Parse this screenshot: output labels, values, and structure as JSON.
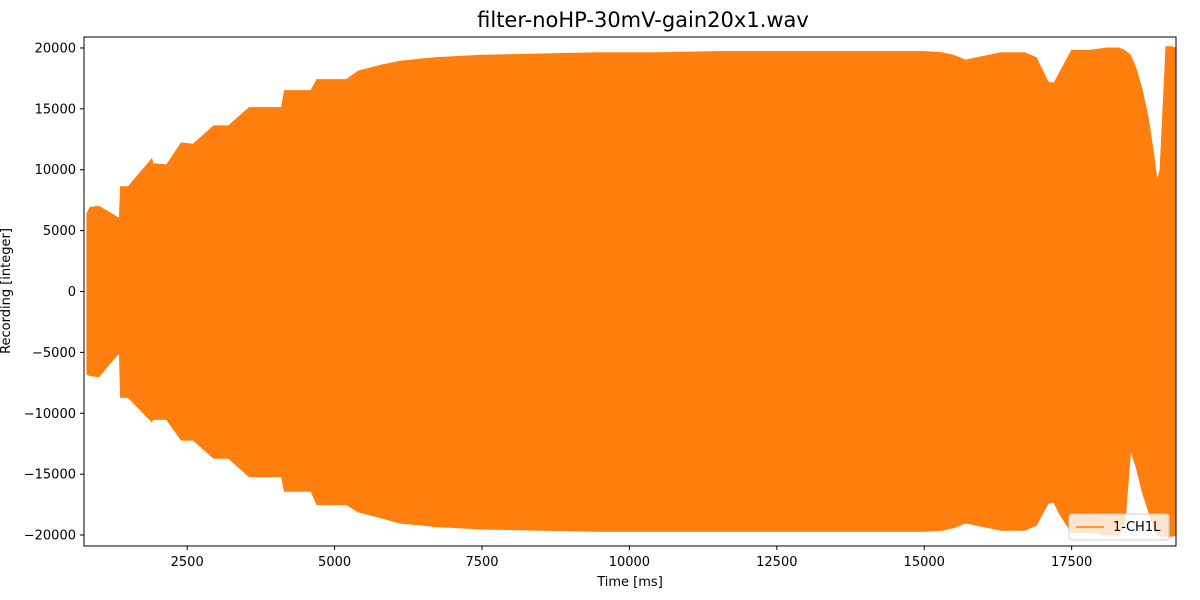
{
  "chart_data": {
    "type": "line",
    "title": "filter-noHP-30mV-gain20x1.wav",
    "xlabel": "Time [ms]",
    "ylabel": "Recording [integer]",
    "xlim": [
      750,
      19270
    ],
    "ylim": [
      -20900,
      20900
    ],
    "xticks": [
      2500,
      5000,
      7500,
      10000,
      12500,
      15000,
      17500
    ],
    "xtick_labels": [
      "2500",
      "5000",
      "7500",
      "10000",
      "12500",
      "15000",
      "17500"
    ],
    "yticks": [
      -20000,
      -15000,
      -10000,
      -5000,
      0,
      5000,
      10000,
      15000,
      20000
    ],
    "ytick_labels": [
      "−20000",
      "−15000",
      "−10000",
      "−5000",
      "0",
      "5000",
      "10000",
      "15000",
      "20000"
    ],
    "grid": false,
    "legend": {
      "position": "lower-right",
      "entries": [
        "1-CH1L"
      ]
    },
    "series": [
      {
        "name": "1-CH1L",
        "color": "#ff7f0e",
        "envelope": {
          "time_ms": [
            800,
            850,
            1000,
            1350,
            1370,
            1500,
            1900,
            1920,
            2150,
            2400,
            2600,
            2950,
            3200,
            3550,
            3650,
            4100,
            4150,
            4600,
            4700,
            5200,
            5400,
            5800,
            6100,
            6500,
            6700,
            7500,
            8500,
            9500,
            10500,
            11500,
            12500,
            13500,
            14500,
            15000,
            15300,
            15500,
            15700,
            16300,
            16700,
            16900,
            17000,
            17100,
            17200,
            17300,
            17500,
            17800,
            18100,
            18300,
            18400,
            18500,
            18600,
            18700,
            18800,
            18900,
            18950,
            19000,
            19100,
            19200,
            19270
          ],
          "upper": [
            6400,
            6900,
            7000,
            6000,
            8600,
            8600,
            10900,
            10500,
            10400,
            12200,
            12100,
            13600,
            13600,
            15100,
            15100,
            15100,
            16500,
            16500,
            17400,
            17400,
            18100,
            18600,
            18900,
            19100,
            19200,
            19400,
            19500,
            19600,
            19600,
            19700,
            19700,
            19700,
            19700,
            19700,
            19600,
            19400,
            19000,
            19600,
            19600,
            19200,
            18200,
            17200,
            17100,
            18000,
            19800,
            19800,
            20000,
            20000,
            19800,
            19400,
            18200,
            16500,
            14200,
            11000,
            9000,
            10000,
            20100,
            20100,
            20000
          ],
          "lower": [
            -6800,
            -6900,
            -7000,
            -5000,
            -8700,
            -8700,
            -10700,
            -10500,
            -10500,
            -12200,
            -12200,
            -13700,
            -13700,
            -15200,
            -15200,
            -15200,
            -16400,
            -16400,
            -17500,
            -17500,
            -18100,
            -18600,
            -19000,
            -19200,
            -19300,
            -19500,
            -19600,
            -19700,
            -19700,
            -19700,
            -19700,
            -19700,
            -19700,
            -19700,
            -19600,
            -19400,
            -19000,
            -19600,
            -19600,
            -19200,
            -18300,
            -17400,
            -17300,
            -18300,
            -19800,
            -19800,
            -20000,
            -20000,
            -19300,
            -13000,
            -14500,
            -16500,
            -18000,
            -19400,
            -20000,
            -20100,
            -20100,
            -20100,
            -20000
          ]
        }
      }
    ]
  }
}
